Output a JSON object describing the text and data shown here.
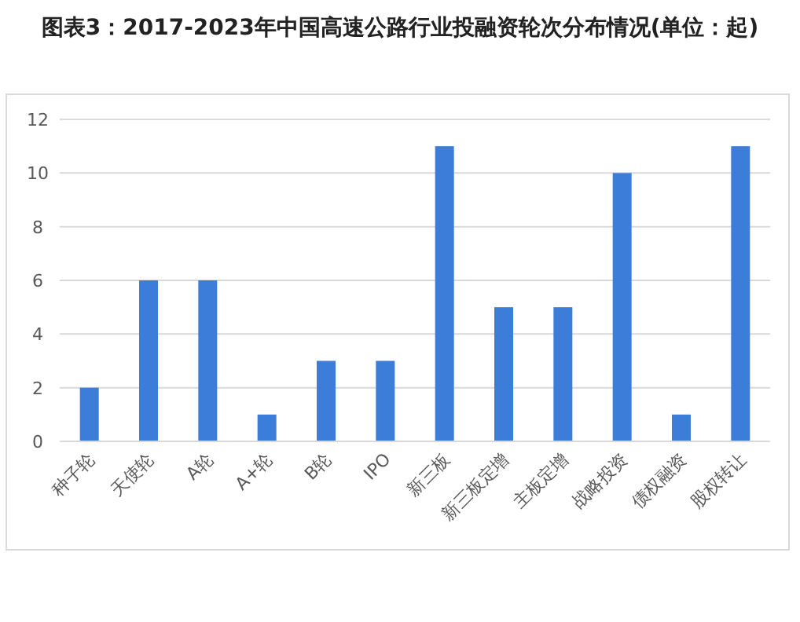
{
  "chart_data": {
    "type": "bar",
    "title": "图表3：2017-2023年中国高速公路行业投融资轮次分布情况(单位：起)",
    "categories": [
      "种子轮",
      "天使轮",
      "A轮",
      "A+轮",
      "B轮",
      "IPO",
      "新三板",
      "新三板定增",
      "主板定增",
      "战略投资",
      "债权融资",
      "股权转让"
    ],
    "values": [
      2,
      6,
      6,
      1,
      3,
      3,
      11,
      5,
      5,
      10,
      1,
      11
    ],
    "color": "#3b7dd8",
    "ylim": [
      0,
      12
    ],
    "yticks": [
      0,
      2,
      4,
      6,
      8,
      10,
      12
    ],
    "grid": "y"
  }
}
